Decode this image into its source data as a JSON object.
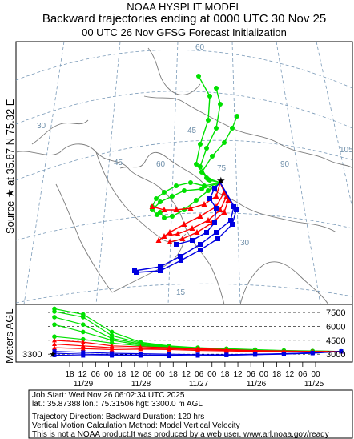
{
  "header": {
    "line1": "NOAA HYSPLIT MODEL",
    "line2": "Backward trajectories ending at 0000 UTC 30 Nov 25",
    "line3": "00 UTC 26 Nov     GFSG  Forecast Initialization"
  },
  "side_labels": {
    "source": "Source ★ at  35.87 N  75.32 E",
    "agl": "Meters AGL"
  },
  "map": {
    "lat_labels": [
      "60",
      "45",
      "30",
      "15"
    ],
    "lon_labels": [
      "30",
      "45",
      "60",
      "75",
      "90",
      "105"
    ],
    "source_marker": "★"
  },
  "info": {
    "line1": "Job Start: Wed Nov 26 06:02:34 UTC 2025",
    "line2": "lat.: 35.87388   lon.: 75.31506   hgt: 3300.0 m AGL",
    "line3": "Trajectory Direction: Backward       Duration: 120 hrs",
    "line4": "Vertical Motion Calculation Method: Model Vertical Velocity",
    "line5": "This is not a NOAA product.It was produced by a web user. www.arl.noaa.gov/ready"
  },
  "colors": {
    "green": "#00e000",
    "red": "#ff0000",
    "blue": "#0000e0",
    "grid": "#7a9ab8"
  },
  "chart_data": {
    "type": "line",
    "title": "Backward trajectories ending at 0000 UTC 30 Nov 25",
    "xlabel": "",
    "ylabel": "Meters AGL",
    "x_tick_labels": [
      "18",
      "12",
      "06",
      "00",
      "18",
      "12",
      "06",
      "00",
      "18",
      "12",
      "06",
      "00",
      "18",
      "12",
      "06",
      "00",
      "18",
      "12",
      "06",
      "00"
    ],
    "date_labels": [
      "11/29",
      "11/28",
      "11/27",
      "11/26",
      "11/25"
    ],
    "y_tick_labels": [
      "3000",
      "4500",
      "6000",
      "7500"
    ],
    "start_height_label": "3300",
    "x_hours_back": [
      -120,
      0
    ],
    "ylim": [
      2500,
      8200
    ],
    "series": [
      {
        "color": "green",
        "hours": [
          -120,
          -108,
          -96,
          -84,
          -72,
          -60,
          -48,
          -36,
          -24,
          -12,
          0
        ],
        "values": [
          7900,
          7300,
          5400,
          4300,
          3900,
          3700,
          3600,
          3500,
          3400,
          3350,
          3300
        ]
      },
      {
        "color": "green",
        "hours": [
          -120,
          -108,
          -96,
          -84,
          -72,
          -60,
          -48,
          -36,
          -24,
          -12,
          0
        ],
        "values": [
          7600,
          7000,
          5000,
          4200,
          3850,
          3650,
          3550,
          3450,
          3380,
          3340,
          3300
        ]
      },
      {
        "color": "green",
        "hours": [
          -120,
          -108,
          -96,
          -84,
          -72,
          -60,
          -48,
          -36,
          -24,
          -12,
          0
        ],
        "values": [
          7000,
          6200,
          4700,
          4100,
          3800,
          3650,
          3550,
          3450,
          3380,
          3330,
          3300
        ]
      },
      {
        "color": "green",
        "hours": [
          -120,
          -108,
          -96,
          -84,
          -72,
          -60,
          -48,
          -36,
          -24,
          -12,
          0
        ],
        "values": [
          6200,
          5400,
          4500,
          4000,
          3750,
          3600,
          3500,
          3420,
          3360,
          3320,
          3300
        ]
      },
      {
        "color": "green",
        "hours": [
          -120,
          -108,
          -96,
          -84,
          -72,
          -60,
          -48,
          -36,
          -24,
          -12,
          0
        ],
        "values": [
          4900,
          4600,
          4200,
          3900,
          3700,
          3550,
          3480,
          3400,
          3350,
          3310,
          3300
        ]
      },
      {
        "color": "red",
        "hours": [
          -120,
          -108,
          -96,
          -84,
          -72,
          -60,
          -48,
          -36,
          -24,
          -12,
          0
        ],
        "values": [
          4500,
          4300,
          3900,
          3800,
          3700,
          3600,
          3500,
          3400,
          3350,
          3300,
          3300
        ]
      },
      {
        "color": "red",
        "hours": [
          -120,
          -108,
          -96,
          -84,
          -72,
          -60,
          -48,
          -36,
          -24,
          -12,
          0
        ],
        "values": [
          4100,
          3900,
          3700,
          3650,
          3600,
          3500,
          3450,
          3350,
          3300,
          3280,
          3300
        ]
      },
      {
        "color": "red",
        "hours": [
          -120,
          -108,
          -96,
          -84,
          -72,
          -60,
          -48,
          -36,
          -24,
          -12,
          0
        ],
        "values": [
          3700,
          3600,
          3500,
          3550,
          3500,
          3400,
          3350,
          3300,
          3250,
          3250,
          3300
        ]
      },
      {
        "color": "blue",
        "hours": [
          -120,
          -108,
          -96,
          -84,
          -72,
          -60,
          -48,
          -36,
          -24,
          -12,
          0
        ],
        "values": [
          3300,
          3200,
          3100,
          3050,
          3000,
          2950,
          2950,
          3000,
          3050,
          3150,
          3300
        ]
      },
      {
        "color": "blue",
        "hours": [
          -120,
          -108,
          -96,
          -84,
          -72,
          -60,
          -48,
          -36,
          -24,
          -12,
          0
        ],
        "values": [
          3100,
          3000,
          2950,
          2900,
          2900,
          2850,
          2900,
          2950,
          3050,
          3150,
          3300
        ]
      },
      {
        "color": "blue",
        "hours": [
          -120,
          -108,
          -96,
          -84,
          -72,
          -60,
          -48,
          -36,
          -24,
          -12,
          0
        ],
        "values": [
          2900,
          2850,
          2850,
          2850,
          2800,
          2850,
          2900,
          2950,
          3000,
          3100,
          3300
        ]
      }
    ]
  }
}
